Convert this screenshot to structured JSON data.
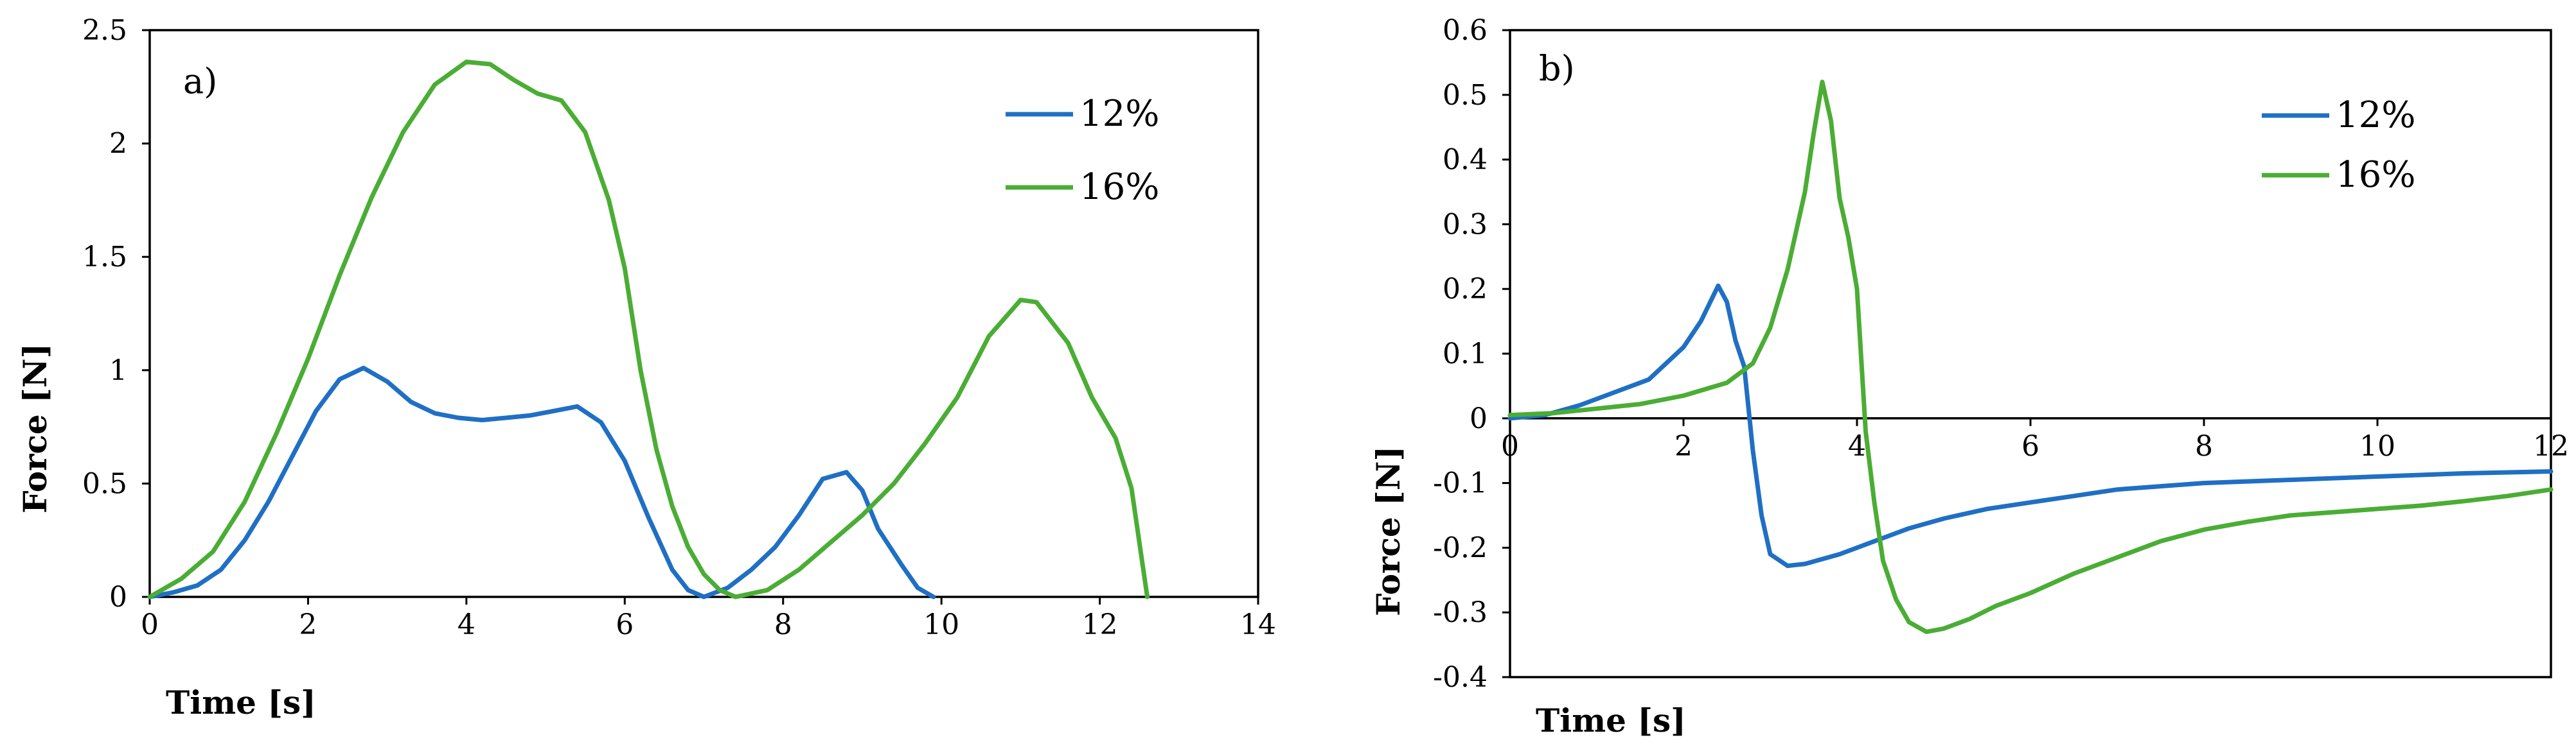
{
  "colors": {
    "series_12": "#1f6fc4",
    "series_16": "#4aad34",
    "axis": "#000000"
  },
  "chart_data": [
    {
      "type": "line",
      "panel_label": "a)",
      "title": "",
      "xlabel": "Time [s]",
      "ylabel": "Force [N]",
      "xlim": [
        0,
        14
      ],
      "ylim": [
        0,
        2.5
      ],
      "xticks": [
        0,
        2,
        4,
        6,
        8,
        10,
        12,
        14
      ],
      "yticks": [
        0,
        0.5,
        1,
        1.5,
        2,
        2.5
      ],
      "xtick_labels": [
        "0",
        "2",
        "4",
        "6",
        "8",
        "10",
        "12",
        "14"
      ],
      "ytick_labels": [
        "0",
        "0.5",
        "1",
        "1.5",
        "2",
        "2.5"
      ],
      "grid": false,
      "legend_position": "top-right",
      "series": [
        {
          "name": "12%",
          "color": "#1f6fc4",
          "points": [
            [
              0,
              0
            ],
            [
              0.3,
              0.02
            ],
            [
              0.6,
              0.05
            ],
            [
              0.9,
              0.12
            ],
            [
              1.2,
              0.25
            ],
            [
              1.5,
              0.42
            ],
            [
              1.8,
              0.62
            ],
            [
              2.1,
              0.82
            ],
            [
              2.4,
              0.96
            ],
            [
              2.7,
              1.01
            ],
            [
              3.0,
              0.95
            ],
            [
              3.3,
              0.86
            ],
            [
              3.6,
              0.81
            ],
            [
              3.9,
              0.79
            ],
            [
              4.2,
              0.78
            ],
            [
              4.5,
              0.79
            ],
            [
              4.8,
              0.8
            ],
            [
              5.1,
              0.82
            ],
            [
              5.4,
              0.84
            ],
            [
              5.7,
              0.77
            ],
            [
              6.0,
              0.6
            ],
            [
              6.3,
              0.35
            ],
            [
              6.6,
              0.12
            ],
            [
              6.8,
              0.03
            ],
            [
              7.0,
              0.0
            ],
            [
              7.3,
              0.04
            ],
            [
              7.6,
              0.12
            ],
            [
              7.9,
              0.22
            ],
            [
              8.2,
              0.36
            ],
            [
              8.5,
              0.52
            ],
            [
              8.8,
              0.55
            ],
            [
              9.0,
              0.47
            ],
            [
              9.2,
              0.3
            ],
            [
              9.5,
              0.14
            ],
            [
              9.7,
              0.04
            ],
            [
              9.9,
              0.0
            ]
          ]
        },
        {
          "name": "16%",
          "color": "#4aad34",
          "points": [
            [
              0,
              0
            ],
            [
              0.4,
              0.08
            ],
            [
              0.8,
              0.2
            ],
            [
              1.2,
              0.42
            ],
            [
              1.6,
              0.72
            ],
            [
              2.0,
              1.05
            ],
            [
              2.4,
              1.42
            ],
            [
              2.8,
              1.76
            ],
            [
              3.2,
              2.05
            ],
            [
              3.6,
              2.26
            ],
            [
              4.0,
              2.36
            ],
            [
              4.3,
              2.35
            ],
            [
              4.6,
              2.28
            ],
            [
              4.9,
              2.22
            ],
            [
              5.2,
              2.19
            ],
            [
              5.5,
              2.05
            ],
            [
              5.8,
              1.75
            ],
            [
              6.0,
              1.45
            ],
            [
              6.2,
              1.0
            ],
            [
              6.4,
              0.65
            ],
            [
              6.6,
              0.4
            ],
            [
              6.8,
              0.22
            ],
            [
              7.0,
              0.1
            ],
            [
              7.2,
              0.03
            ],
            [
              7.4,
              0.0
            ],
            [
              7.8,
              0.03
            ],
            [
              8.2,
              0.12
            ],
            [
              8.6,
              0.24
            ],
            [
              9.0,
              0.36
            ],
            [
              9.4,
              0.5
            ],
            [
              9.8,
              0.68
            ],
            [
              10.2,
              0.88
            ],
            [
              10.6,
              1.15
            ],
            [
              11.0,
              1.31
            ],
            [
              11.2,
              1.3
            ],
            [
              11.6,
              1.12
            ],
            [
              11.9,
              0.88
            ],
            [
              12.2,
              0.7
            ],
            [
              12.4,
              0.48
            ],
            [
              12.6,
              0.0
            ]
          ]
        }
      ]
    },
    {
      "type": "line",
      "panel_label": "b)",
      "title": "",
      "xlabel": "Time [s]",
      "ylabel": "Force [N]",
      "xlim": [
        0,
        12
      ],
      "ylim": [
        -0.4,
        0.6
      ],
      "xticks": [
        0,
        2,
        4,
        6,
        8,
        10,
        12
      ],
      "yticks": [
        -0.4,
        -0.3,
        -0.2,
        -0.1,
        0,
        0.1,
        0.2,
        0.3,
        0.4,
        0.5,
        0.6
      ],
      "xtick_labels": [
        "0",
        "2",
        "4",
        "6",
        "8",
        "10",
        "12"
      ],
      "ytick_labels": [
        "-0.4",
        "-0.3",
        "-0.2",
        "-0.1",
        "0",
        "0.1",
        "0.2",
        "0.3",
        "0.4",
        "0.5",
        "0.6"
      ],
      "grid": false,
      "legend_position": "top-right",
      "series": [
        {
          "name": "12%",
          "color": "#1f6fc4",
          "points": [
            [
              0,
              0
            ],
            [
              0.4,
              0.005
            ],
            [
              0.8,
              0.02
            ],
            [
              1.2,
              0.04
            ],
            [
              1.6,
              0.06
            ],
            [
              2.0,
              0.11
            ],
            [
              2.2,
              0.15
            ],
            [
              2.4,
              0.205
            ],
            [
              2.5,
              0.18
            ],
            [
              2.6,
              0.12
            ],
            [
              2.7,
              0.08
            ],
            [
              2.8,
              -0.05
            ],
            [
              2.9,
              -0.15
            ],
            [
              3.0,
              -0.21
            ],
            [
              3.2,
              -0.228
            ],
            [
              3.4,
              -0.225
            ],
            [
              3.8,
              -0.21
            ],
            [
              4.2,
              -0.19
            ],
            [
              4.6,
              -0.17
            ],
            [
              5.0,
              -0.155
            ],
            [
              5.5,
              -0.14
            ],
            [
              6.0,
              -0.13
            ],
            [
              6.5,
              -0.12
            ],
            [
              7.0,
              -0.11
            ],
            [
              7.5,
              -0.105
            ],
            [
              8.0,
              -0.1
            ],
            [
              9.0,
              -0.095
            ],
            [
              10.0,
              -0.09
            ],
            [
              11.0,
              -0.085
            ],
            [
              12.0,
              -0.082
            ]
          ]
        },
        {
          "name": "16%",
          "color": "#4aad34",
          "points": [
            [
              0,
              0.005
            ],
            [
              0.5,
              0.008
            ],
            [
              1.0,
              0.015
            ],
            [
              1.5,
              0.022
            ],
            [
              2.0,
              0.035
            ],
            [
              2.5,
              0.055
            ],
            [
              2.8,
              0.085
            ],
            [
              3.0,
              0.14
            ],
            [
              3.2,
              0.23
            ],
            [
              3.4,
              0.35
            ],
            [
              3.5,
              0.44
            ],
            [
              3.6,
              0.52
            ],
            [
              3.7,
              0.46
            ],
            [
              3.8,
              0.34
            ],
            [
              3.9,
              0.28
            ],
            [
              4.0,
              0.2
            ],
            [
              4.1,
              -0.02
            ],
            [
              4.2,
              -0.13
            ],
            [
              4.3,
              -0.22
            ],
            [
              4.45,
              -0.28
            ],
            [
              4.6,
              -0.315
            ],
            [
              4.8,
              -0.33
            ],
            [
              5.0,
              -0.325
            ],
            [
              5.3,
              -0.31
            ],
            [
              5.6,
              -0.29
            ],
            [
              6.0,
              -0.27
            ],
            [
              6.5,
              -0.24
            ],
            [
              7.0,
              -0.215
            ],
            [
              7.5,
              -0.19
            ],
            [
              8.0,
              -0.172
            ],
            [
              8.5,
              -0.16
            ],
            [
              9.0,
              -0.15
            ],
            [
              9.5,
              -0.145
            ],
            [
              10.0,
              -0.14
            ],
            [
              10.5,
              -0.135
            ],
            [
              11.0,
              -0.128
            ],
            [
              11.5,
              -0.12
            ],
            [
              12.0,
              -0.11
            ]
          ]
        }
      ]
    }
  ]
}
